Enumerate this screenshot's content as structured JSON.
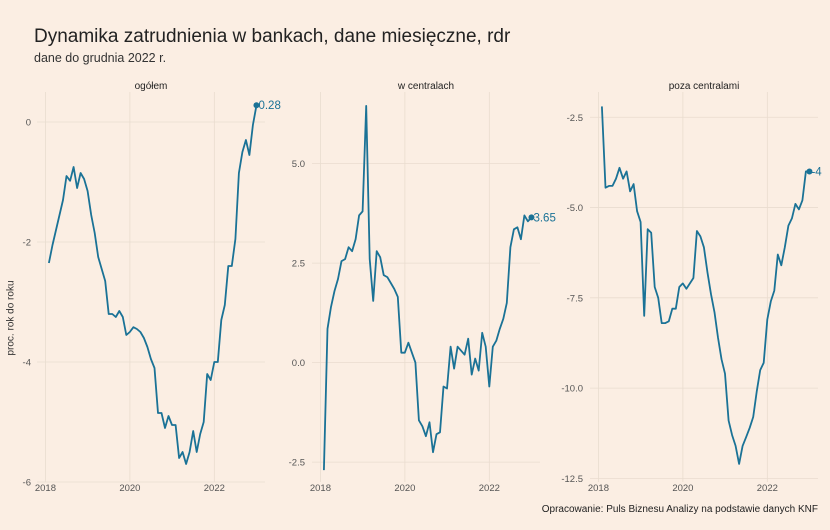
{
  "header": {
    "title": "Dynamika zatrudnienia w bankach, dane miesięczne, rdr",
    "subtitle": "dane do grudnia 2022 r."
  },
  "ylabel": "proc. rok do roku",
  "caption": "Opracowanie: Puls Biznesu Analizy na podstawie danych KNF",
  "colors": {
    "background": "#fbeee3",
    "series": "#1a7296"
  },
  "chart_data": [
    {
      "type": "line",
      "title": "ogółem",
      "x_range": [
        2017.8,
        2023.2
      ],
      "ylim": [
        -6.0,
        0.5
      ],
      "yticks": [
        0,
        -2,
        -4,
        -6
      ],
      "ytick_labels": [
        "0",
        "-2",
        "-4",
        "-6"
      ],
      "xticks": [
        2018,
        2020,
        2022
      ],
      "end_label": "0.28",
      "series": [
        {
          "x_start": 2018.083,
          "step": 0.0833,
          "values": [
            -2.35,
            -2.05,
            -1.8,
            -1.55,
            -1.3,
            -0.9,
            -0.98,
            -0.75,
            -1.1,
            -0.85,
            -0.95,
            -1.15,
            -1.55,
            -1.85,
            -2.25,
            -2.45,
            -2.65,
            -3.2,
            -3.2,
            -3.25,
            -3.15,
            -3.25,
            -3.55,
            -3.5,
            -3.42,
            -3.45,
            -3.5,
            -3.6,
            -3.75,
            -3.95,
            -4.1,
            -4.85,
            -4.85,
            -5.1,
            -4.9,
            -5.05,
            -5.05,
            -5.6,
            -5.5,
            -5.7,
            -5.5,
            -5.15,
            -5.5,
            -5.2,
            -5.0,
            -4.2,
            -4.3,
            -4.0,
            -4.0,
            -3.3,
            -3.05,
            -2.4,
            -2.4,
            -1.95,
            -0.85,
            -0.5,
            -0.3,
            -0.55,
            -0.05,
            0.28
          ]
        }
      ]
    },
    {
      "type": "line",
      "title": "w centralach",
      "x_range": [
        2017.8,
        2023.2
      ],
      "ylim": [
        -3.0,
        6.8
      ],
      "yticks": [
        5.0,
        2.5,
        0.0,
        -2.5
      ],
      "ytick_labels": [
        "5.0",
        "2.5",
        "0.0",
        "-2.5"
      ],
      "xticks": [
        2018,
        2020,
        2022
      ],
      "end_label": "3.65",
      "series": [
        {
          "x_start": 2018.083,
          "step": 0.0833,
          "values": [
            -2.7,
            0.85,
            1.4,
            1.8,
            2.1,
            2.55,
            2.6,
            2.9,
            2.8,
            3.1,
            3.7,
            3.8,
            6.45,
            2.6,
            1.55,
            2.8,
            2.65,
            2.2,
            2.15,
            2.0,
            1.85,
            1.65,
            0.25,
            0.25,
            0.5,
            0.25,
            0.0,
            -1.45,
            -1.6,
            -1.85,
            -1.5,
            -2.25,
            -1.8,
            -1.75,
            -0.6,
            -0.65,
            0.4,
            -0.15,
            0.4,
            0.3,
            0.2,
            0.6,
            -0.3,
            0.1,
            -0.2,
            0.75,
            0.4,
            -0.6,
            0.4,
            0.55,
            0.85,
            1.1,
            1.5,
            2.9,
            3.35,
            3.4,
            3.1,
            3.7,
            3.55,
            3.65
          ]
        }
      ]
    },
    {
      "type": "line",
      "title": "poza centralami",
      "x_range": [
        2017.8,
        2023.2
      ],
      "ylim": [
        -12.6,
        -1.8
      ],
      "yticks": [
        -2.5,
        -5.0,
        -7.5,
        -10.0,
        -12.5
      ],
      "ytick_labels": [
        "-2.5",
        "-5.0",
        "-7.5",
        "-10.0",
        "-12.5"
      ],
      "xticks": [
        2018,
        2020,
        2022
      ],
      "end_label": "-4",
      "series": [
        {
          "x_start": 2018.083,
          "step": 0.0833,
          "values": [
            -2.2,
            -4.45,
            -4.4,
            -4.4,
            -4.2,
            -3.9,
            -4.2,
            -4.0,
            -4.55,
            -4.35,
            -5.1,
            -5.4,
            -8.0,
            -5.6,
            -5.7,
            -7.2,
            -7.5,
            -8.2,
            -8.2,
            -8.15,
            -7.8,
            -7.8,
            -7.2,
            -7.1,
            -7.25,
            -7.1,
            -6.95,
            -5.65,
            -5.8,
            -6.1,
            -6.8,
            -7.4,
            -7.9,
            -8.6,
            -9.2,
            -9.6,
            -10.9,
            -11.3,
            -11.6,
            -12.1,
            -11.6,
            -11.35,
            -11.1,
            -10.8,
            -10.1,
            -9.5,
            -9.3,
            -8.1,
            -7.6,
            -7.3,
            -6.3,
            -6.6,
            -6.1,
            -5.5,
            -5.3,
            -4.9,
            -5.05,
            -4.8,
            -4.0,
            -4.0
          ]
        }
      ]
    }
  ]
}
